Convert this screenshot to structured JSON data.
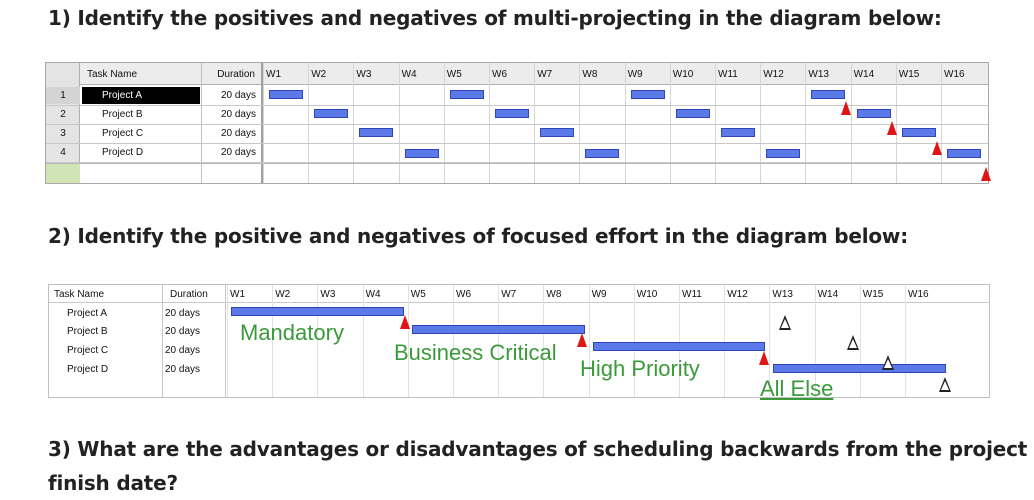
{
  "questions": {
    "q1": "1) Identify the positives and negatives of multi-projecting in the diagram below:",
    "q2": "2) Identify the positive and negatives of focused effort  in the diagram below:",
    "q3": "3) What are the advantages or disadvantages of scheduling backwards from the project finish date?"
  },
  "gantt1": {
    "headers": {
      "task": "Task Name",
      "duration": "Duration"
    },
    "weeks": [
      "W1",
      "W2",
      "W3",
      "W4",
      "W5",
      "W6",
      "W7",
      "W8",
      "W9",
      "W10",
      "W11",
      "W12",
      "W13",
      "W14",
      "W15",
      "W16"
    ],
    "rows": [
      {
        "num": "1",
        "name": "Project A",
        "duration": "20 days",
        "selected": true
      },
      {
        "num": "2",
        "name": "Project B",
        "duration": "20 days"
      },
      {
        "num": "3",
        "name": "Project C",
        "duration": "20 days"
      },
      {
        "num": "4",
        "name": "Project D",
        "duration": "20 days"
      }
    ],
    "bar_color": "#5b79e8",
    "milestone_color": "#e01515"
  },
  "gantt2": {
    "headers": {
      "task": "Task Name",
      "duration": "Duration"
    },
    "weeks": [
      "W1",
      "W2",
      "W3",
      "W4",
      "W5",
      "W6",
      "W7",
      "W8",
      "W9",
      "W10",
      "W11",
      "W12",
      "W13",
      "W14",
      "W15",
      "W16"
    ],
    "rows": [
      {
        "name": "Project A",
        "duration": "20 days"
      },
      {
        "name": "Project B",
        "duration": "20 days"
      },
      {
        "name": "Project C",
        "duration": "20 days"
      },
      {
        "name": "Project D",
        "duration": "20 days"
      }
    ],
    "labels": {
      "mandatory": "Mandatory",
      "business_critical": "Business Critical",
      "high_priority": "High Priority",
      "all_else": "All Else"
    },
    "label_color": "#3a9a3a"
  }
}
